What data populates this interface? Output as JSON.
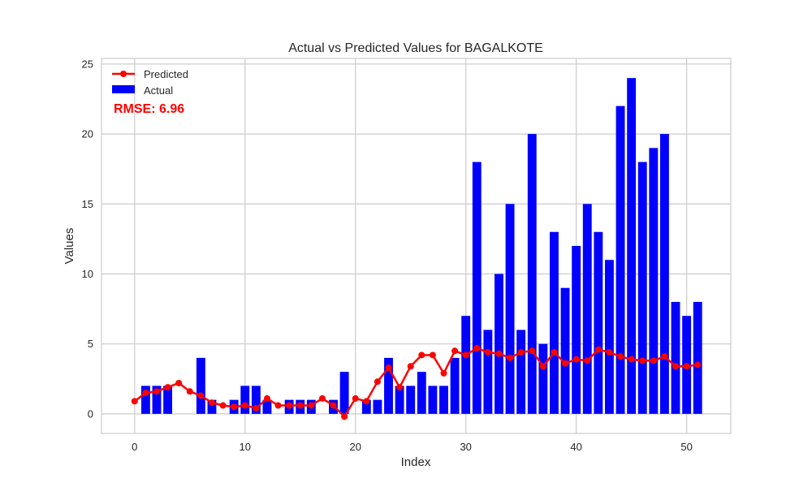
{
  "chart_data": {
    "type": "bar",
    "title": "Actual vs Predicted Values for BAGALKOTE",
    "xlabel": "Index",
    "ylabel": "Values",
    "xlim": [
      -3,
      54
    ],
    "ylim": [
      -1.4,
      25.4
    ],
    "xticks": [
      0,
      10,
      20,
      30,
      40,
      50
    ],
    "yticks": [
      0,
      5,
      10,
      15,
      20,
      25
    ],
    "grid": true,
    "legend_position": "upper-left",
    "annotation": "RMSE: 6.96",
    "x": [
      0,
      1,
      2,
      3,
      4,
      5,
      6,
      7,
      8,
      9,
      10,
      11,
      12,
      13,
      14,
      15,
      16,
      17,
      18,
      19,
      20,
      21,
      22,
      23,
      24,
      25,
      26,
      27,
      28,
      29,
      30,
      31,
      32,
      33,
      34,
      35,
      36,
      37,
      38,
      39,
      40,
      41,
      42,
      43,
      44,
      45,
      46,
      47,
      48,
      49,
      50,
      51
    ],
    "series": [
      {
        "name": "Actual",
        "kind": "bar",
        "color": "#0000ff",
        "values": [
          0,
          2,
          2,
          2,
          0,
          0,
          4,
          1,
          0,
          1,
          2,
          2,
          1,
          0,
          1,
          1,
          1,
          0,
          1,
          3,
          0,
          1,
          1,
          4,
          2,
          2,
          3,
          2,
          2,
          4,
          7,
          18,
          6,
          10,
          15,
          6,
          20,
          5,
          13,
          9,
          12,
          15,
          13,
          11,
          22,
          24,
          18,
          19,
          20,
          8,
          7,
          8
        ]
      },
      {
        "name": "Predicted",
        "kind": "line",
        "color": "#ff0000",
        "values": [
          0.9,
          1.5,
          1.6,
          1.9,
          2.2,
          1.6,
          1.3,
          0.8,
          0.6,
          0.5,
          0.6,
          0.4,
          1.1,
          0.6,
          0.6,
          0.6,
          0.6,
          1.1,
          0.6,
          -0.2,
          1.1,
          0.9,
          2.3,
          3.3,
          1.9,
          3.4,
          4.2,
          4.2,
          2.9,
          4.5,
          4.2,
          4.7,
          4.4,
          4.3,
          4.0,
          4.4,
          4.5,
          3.4,
          4.4,
          3.6,
          3.9,
          3.8,
          4.6,
          4.4,
          4.1,
          3.9,
          3.8,
          3.8,
          4.1,
          3.4,
          3.4,
          3.5
        ]
      }
    ]
  }
}
